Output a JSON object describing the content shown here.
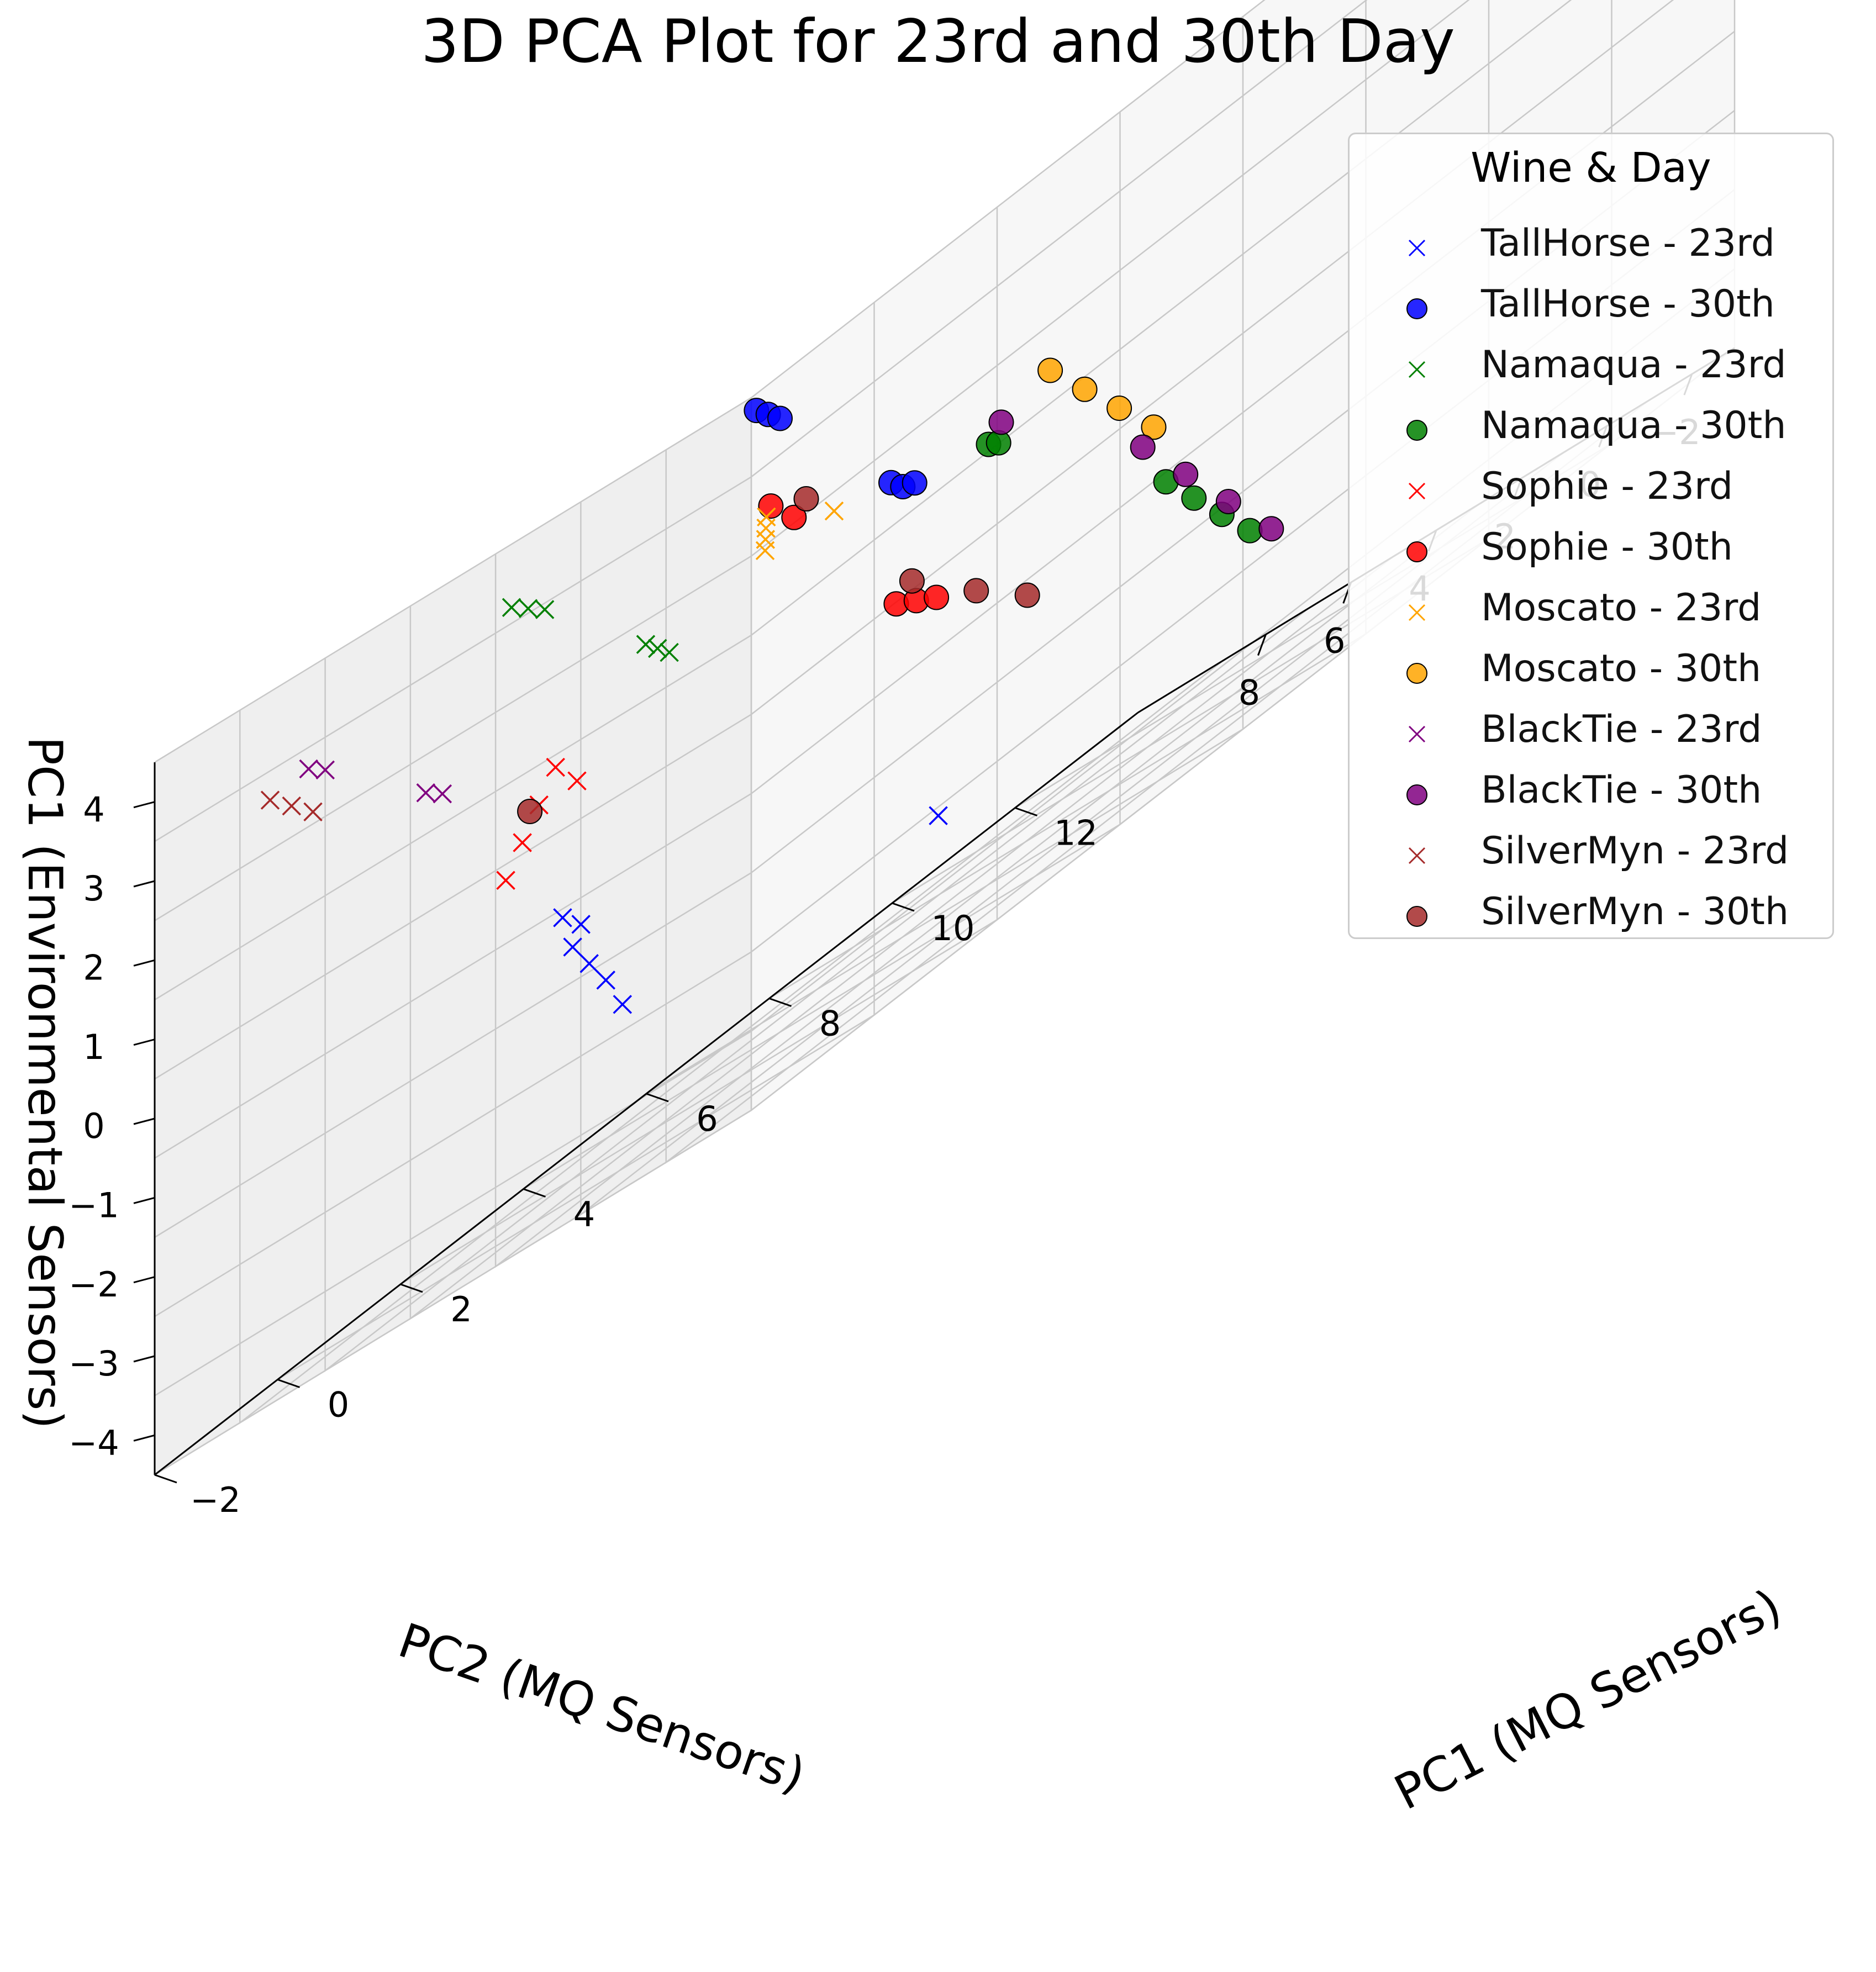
{
  "chart_data": {
    "type": "scatter3d",
    "title": "3D PCA Plot for 23rd and 30th Day",
    "xlabel": "PC1 (MQ Sensors)",
    "ylabel": "PC2 (MQ Sensors)",
    "zlabel": "PC1 (Environmental Sensors)",
    "xlim": [
      -3,
      12
    ],
    "ylim": [
      -2.6,
      9.8
    ],
    "zlim": [
      -4.3,
      4.9
    ],
    "xticks": [
      "−2",
      "0",
      "2",
      "4",
      "6",
      "8",
      "10",
      "12"
    ],
    "yticks": [
      "−2",
      "0",
      "2",
      "4",
      "6",
      "8"
    ],
    "zticks": [
      "−4",
      "−3",
      "−2",
      "−1",
      "0",
      "1",
      "2",
      "3",
      "4"
    ],
    "grid": true,
    "legend_title": "Wine & Day",
    "legend_position": "top-right",
    "series": [
      {
        "name": "TallHorse - 23rd",
        "color": "#0000ff",
        "marker": "x",
        "points": [
          [
            0,
            5.2,
            -1.2
          ],
          [
            0.4,
            5.4,
            -1.6
          ],
          [
            0.8,
            5.6,
            -2.0
          ],
          [
            1.2,
            5.8,
            -2.5
          ],
          [
            -0.3,
            5.0,
            -0.7
          ],
          [
            0.2,
            5.3,
            -1.0
          ],
          [
            8,
            8.5,
            -3.5
          ]
        ]
      },
      {
        "name": "TallHorse - 30th",
        "color": "#0000ff",
        "marker": "o",
        "points": [
          [
            -1.6,
            -0.8,
            4.5
          ],
          [
            -1.2,
            -0.5,
            4.3
          ],
          [
            -0.8,
            -0.2,
            4.1
          ],
          [
            0.6,
            -0.6,
            2.2
          ],
          [
            1.0,
            -0.3,
            2.0
          ],
          [
            1.4,
            0.0,
            1.9
          ]
        ]
      },
      {
        "name": "Namaqua - 23rd",
        "color": "#008000",
        "marker": "x",
        "points": [
          [
            -2.4,
            3.2,
            4.0
          ],
          [
            -2.0,
            3.4,
            3.8
          ],
          [
            -1.6,
            3.6,
            3.6
          ],
          [
            -0.5,
            3.0,
            2.2
          ],
          [
            -0.1,
            3.3,
            2.0
          ],
          [
            0.3,
            3.6,
            1.8
          ]
        ]
      },
      {
        "name": "Namaqua - 30th",
        "color": "#008000",
        "marker": "o",
        "points": [
          [
            1.5,
            -1.4,
            1.8
          ],
          [
            1.8,
            -1.2,
            1.7
          ],
          [
            4.5,
            -1.0,
            -0.5
          ],
          [
            5.0,
            -0.9,
            -1.0
          ],
          [
            5.5,
            -0.8,
            -1.5
          ],
          [
            6.0,
            -0.7,
            -2.0
          ]
        ]
      },
      {
        "name": "Sophie - 23rd",
        "color": "#ff0000",
        "marker": "x",
        "points": [
          [
            -0.8,
            5.5,
            0.3
          ],
          [
            -0.4,
            5.7,
            0.6
          ],
          [
            0.0,
            5.9,
            0.9
          ],
          [
            0.4,
            6.1,
            1.2
          ],
          [
            0.8,
            6.2,
            0.8
          ]
        ]
      },
      {
        "name": "Sophie - 30th",
        "color": "#ff0000",
        "marker": "o",
        "points": [
          [
            -0.5,
            0.4,
            3.0
          ],
          [
            0.0,
            0.6,
            2.6
          ],
          [
            2.0,
            1.2,
            0.4
          ],
          [
            2.6,
            1.6,
            0.2
          ],
          [
            3.2,
            2.0,
            0.0
          ]
        ]
      },
      {
        "name": "Moscato - 23rd",
        "color": "#ffa500",
        "marker": "x",
        "points": [
          [
            0.0,
            1.2,
            2.4
          ],
          [
            0.3,
            1.6,
            2.5
          ],
          [
            0.6,
            2.0,
            2.6
          ],
          [
            0.9,
            2.4,
            2.7
          ],
          [
            1.2,
            1.4,
            2.2
          ]
        ]
      },
      {
        "name": "Moscato - 30th",
        "color": "#ffa500",
        "marker": "o",
        "points": [
          [
            2.0,
            -2.0,
            2.2
          ],
          [
            2.6,
            -1.9,
            1.6
          ],
          [
            3.2,
            -1.8,
            1.0
          ],
          [
            3.8,
            -1.7,
            0.4
          ]
        ]
      },
      {
        "name": "BlackTie - 23rd",
        "color": "#800080",
        "marker": "x",
        "points": [
          [
            -3.0,
            6.6,
            3.6
          ],
          [
            -2.6,
            6.8,
            3.4
          ],
          [
            -1.8,
            5.8,
            2.2
          ],
          [
            -1.4,
            6.0,
            2.0
          ]
        ]
      },
      {
        "name": "BlackTie - 30th",
        "color": "#800080",
        "marker": "o",
        "points": [
          [
            1.4,
            -1.8,
            2.0
          ],
          [
            4.0,
            -1.2,
            0.2
          ],
          [
            4.8,
            -1.0,
            -0.6
          ],
          [
            5.6,
            -0.8,
            -1.4
          ],
          [
            6.4,
            -0.6,
            -2.2
          ]
        ]
      },
      {
        "name": "SilverMyn - 23rd",
        "color": "#a52a2a",
        "marker": "x",
        "points": [
          [
            -3.0,
            7.4,
            3.5
          ],
          [
            -2.6,
            7.5,
            3.2
          ],
          [
            -2.2,
            7.6,
            2.9
          ]
        ]
      },
      {
        "name": "SilverMyn - 30th",
        "color": "#a52a2a",
        "marker": "o",
        "points": [
          [
            -0.4,
            -0.2,
            2.8
          ],
          [
            1.8,
            0.6,
            0.6
          ],
          [
            3.0,
            0.9,
            -0.2
          ],
          [
            4.0,
            1.2,
            -0.8
          ],
          [
            -0.8,
            5.0,
            1.0
          ]
        ]
      }
    ]
  }
}
